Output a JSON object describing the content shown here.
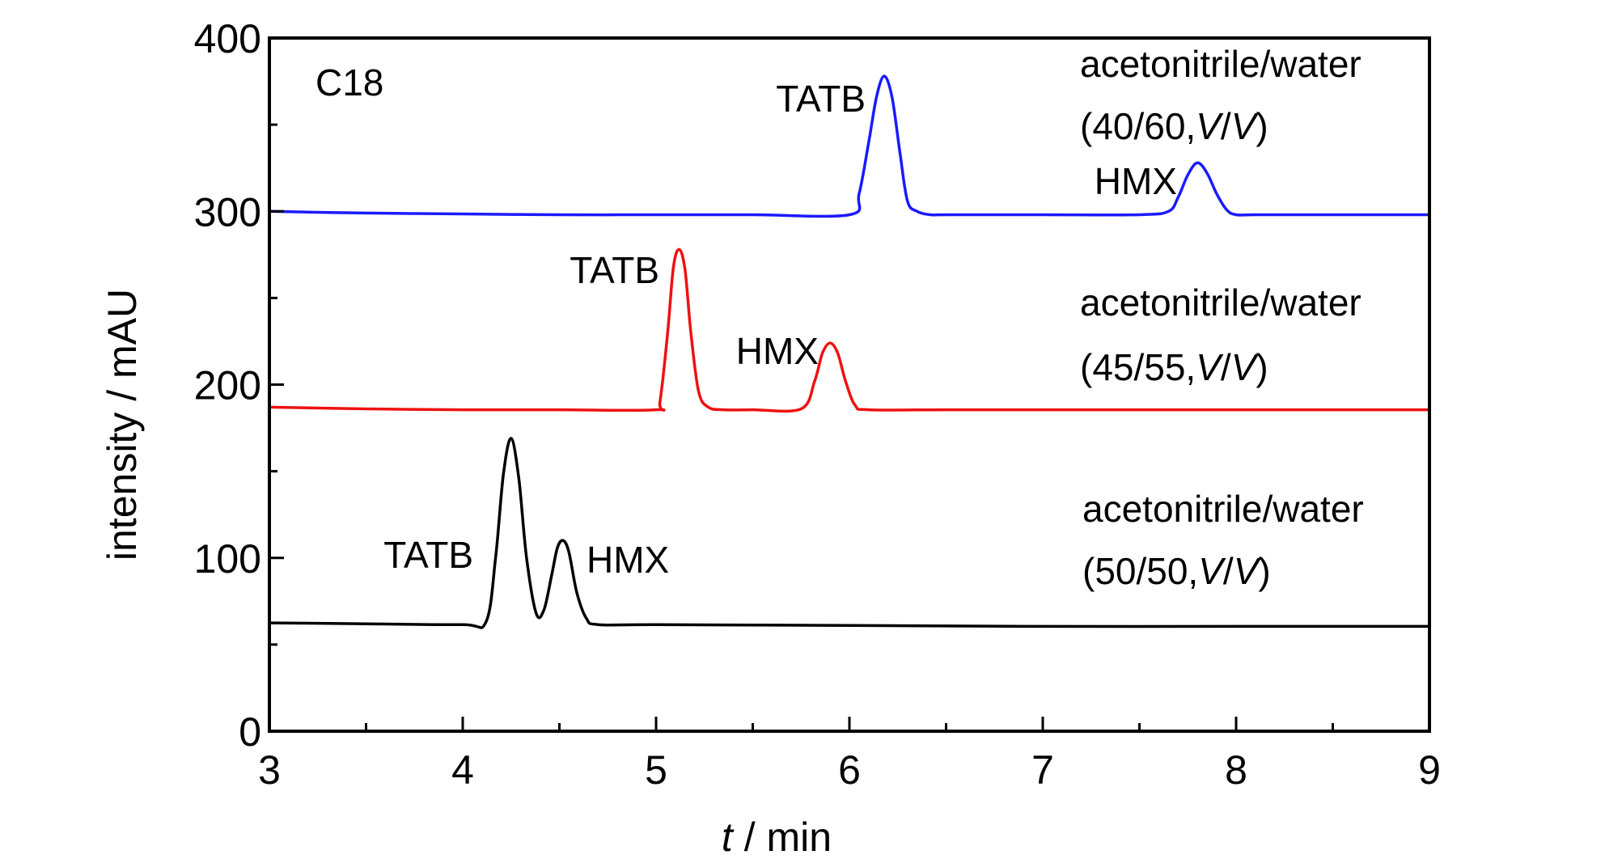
{
  "chart_data": {
    "type": "line",
    "title": "",
    "xlabel": {
      "italic": "t",
      "rest": " / min"
    },
    "ylabel": "intensity / mAU",
    "xlim": [
      3,
      9
    ],
    "ylim": [
      0,
      400
    ],
    "x_ticks": [
      "3",
      "4",
      "5",
      "6",
      "7",
      "8",
      "9"
    ],
    "y_ticks": [
      "0",
      "100",
      "200",
      "300",
      "400"
    ],
    "grid": false,
    "column_label": "C18",
    "series": [
      {
        "color": "#1a1aff",
        "x": [
          3.0,
          3.5,
          4.0,
          4.5,
          5.0,
          5.5,
          6.0,
          6.05,
          6.1,
          6.14,
          6.18,
          6.22,
          6.26,
          6.3,
          6.35,
          6.42,
          6.5,
          7.0,
          7.5,
          7.65,
          7.7,
          7.75,
          7.8,
          7.85,
          7.9,
          7.95,
          8.0,
          8.1,
          8.5,
          9.0
        ],
        "y": [
          300,
          299,
          298.5,
          298,
          298,
          298,
          298,
          310,
          340,
          366,
          378,
          366,
          335,
          306,
          300,
          298,
          298,
          298,
          298,
          300,
          308,
          321,
          328,
          322,
          310,
          301,
          298,
          298,
          298,
          298
        ],
        "peaks": [
          "TATB",
          "HMX"
        ],
        "condition": [
          "acetonitrile/water",
          "(40/60,",
          "V",
          "/",
          "V",
          ")"
        ]
      },
      {
        "color": "#ee1111",
        "x": [
          3.0,
          3.5,
          4.0,
          4.5,
          5.0,
          5.02,
          5.06,
          5.09,
          5.12,
          5.15,
          5.18,
          5.22,
          5.27,
          5.35,
          5.5,
          5.75,
          5.82,
          5.86,
          5.9,
          5.94,
          5.98,
          6.03,
          6.1,
          6.5,
          7.0,
          8.0,
          9.0
        ],
        "y": [
          187,
          186,
          185.5,
          185.5,
          185.5,
          190,
          230,
          268,
          278,
          266,
          230,
          196,
          187,
          185.5,
          185.5,
          186,
          202,
          218,
          224,
          218,
          202,
          188,
          185.5,
          185.5,
          185.5,
          185.5,
          185.5
        ],
        "peaks": [
          "TATB",
          "HMX"
        ],
        "condition": [
          "acetonitrile/water",
          "(45/55,",
          "V",
          "/",
          "V",
          ")"
        ]
      },
      {
        "color": "#000000",
        "x": [
          3.0,
          3.5,
          4.0,
          4.12,
          4.17,
          4.21,
          4.25,
          4.29,
          4.33,
          4.38,
          4.42,
          4.46,
          4.49,
          4.52,
          4.55,
          4.59,
          4.64,
          4.7,
          5.0,
          6.0,
          7.0,
          8.0,
          9.0
        ],
        "y": [
          62.5,
          62,
          61.5,
          63,
          100,
          148,
          169,
          146,
          100,
          68,
          70,
          90,
          106,
          110,
          103,
          80,
          65,
          61.5,
          61.5,
          61,
          60.5,
          60.5,
          60.5
        ],
        "peaks": [
          "TATB",
          "HMX"
        ],
        "condition": [
          "acetonitrile/water",
          "(50/50,",
          "V",
          "/",
          "V",
          ")"
        ]
      }
    ]
  }
}
